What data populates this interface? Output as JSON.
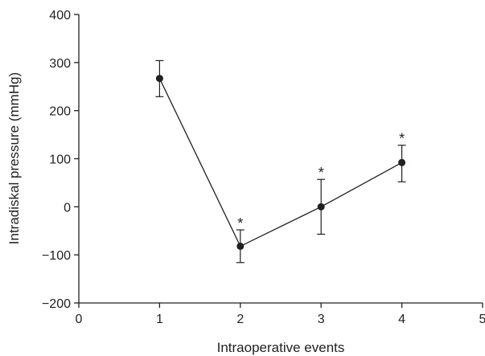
{
  "chart_data": {
    "type": "line",
    "title": "",
    "xlabel": "Intraoperative events",
    "ylabel": "Intradiskal pressure (mmHg)",
    "xlim": [
      0,
      5
    ],
    "ylim": [
      -200,
      400
    ],
    "xticks": [
      0,
      1,
      2,
      3,
      4,
      5
    ],
    "xtick_labels": [
      "0",
      "1",
      "2",
      "3",
      "4",
      "5"
    ],
    "yticks": [
      -200,
      -100,
      0,
      100,
      200,
      300,
      400
    ],
    "ytick_labels": [
      "−200",
      "−100",
      "0",
      "100",
      "200",
      "300",
      "400"
    ],
    "grid": false,
    "legend": "none",
    "series": [
      {
        "x": [
          1,
          2,
          3,
          4
        ],
        "values": [
          267,
          -82,
          0,
          92
        ],
        "error_upper": [
          304,
          -48,
          57,
          128
        ],
        "error_lower": [
          229,
          -116,
          -57,
          52
        ],
        "significance": [
          "",
          "*",
          "*",
          "*"
        ],
        "color": "#231f20"
      }
    ]
  }
}
